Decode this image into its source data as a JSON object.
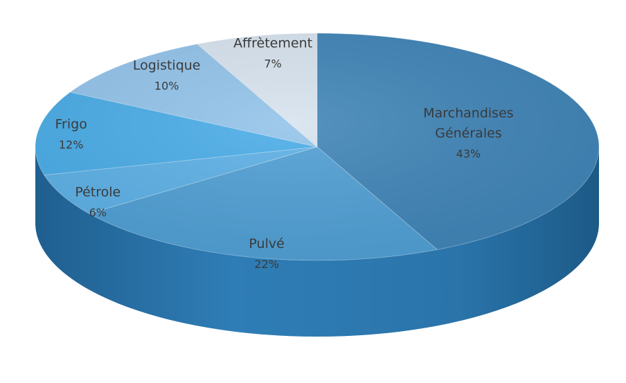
{
  "chart_data": {
    "type": "pie",
    "title": "",
    "slices": [
      {
        "label": "Marchandises Générales",
        "lines": [
          "Marchandises",
          "Générales"
        ],
        "value": 43,
        "pct_text": "43%",
        "color": "#3f84b7"
      },
      {
        "label": "Pulvé",
        "lines": [
          "Pulvé"
        ],
        "value": 22,
        "pct_text": "22%",
        "color": "#4f9fd4"
      },
      {
        "label": "Pétrole",
        "lines": [
          "Pétrole"
        ],
        "value": 6,
        "pct_text": "6%",
        "color": "#5cb0e6"
      },
      {
        "label": "Frigo",
        "lines": [
          "Frigo"
        ],
        "value": 12,
        "pct_text": "12%",
        "color": "#49ace7"
      },
      {
        "label": "Logistique",
        "lines": [
          "Logistique"
        ],
        "value": 10,
        "pct_text": "10%",
        "color": "#92c3ea"
      },
      {
        "label": "Affrètement",
        "lines": [
          "Affrètement"
        ],
        "value": 7,
        "pct_text": "7%",
        "color": "#d7e3ee"
      }
    ],
    "legend": "none",
    "style": "3d-exploded-pie"
  }
}
